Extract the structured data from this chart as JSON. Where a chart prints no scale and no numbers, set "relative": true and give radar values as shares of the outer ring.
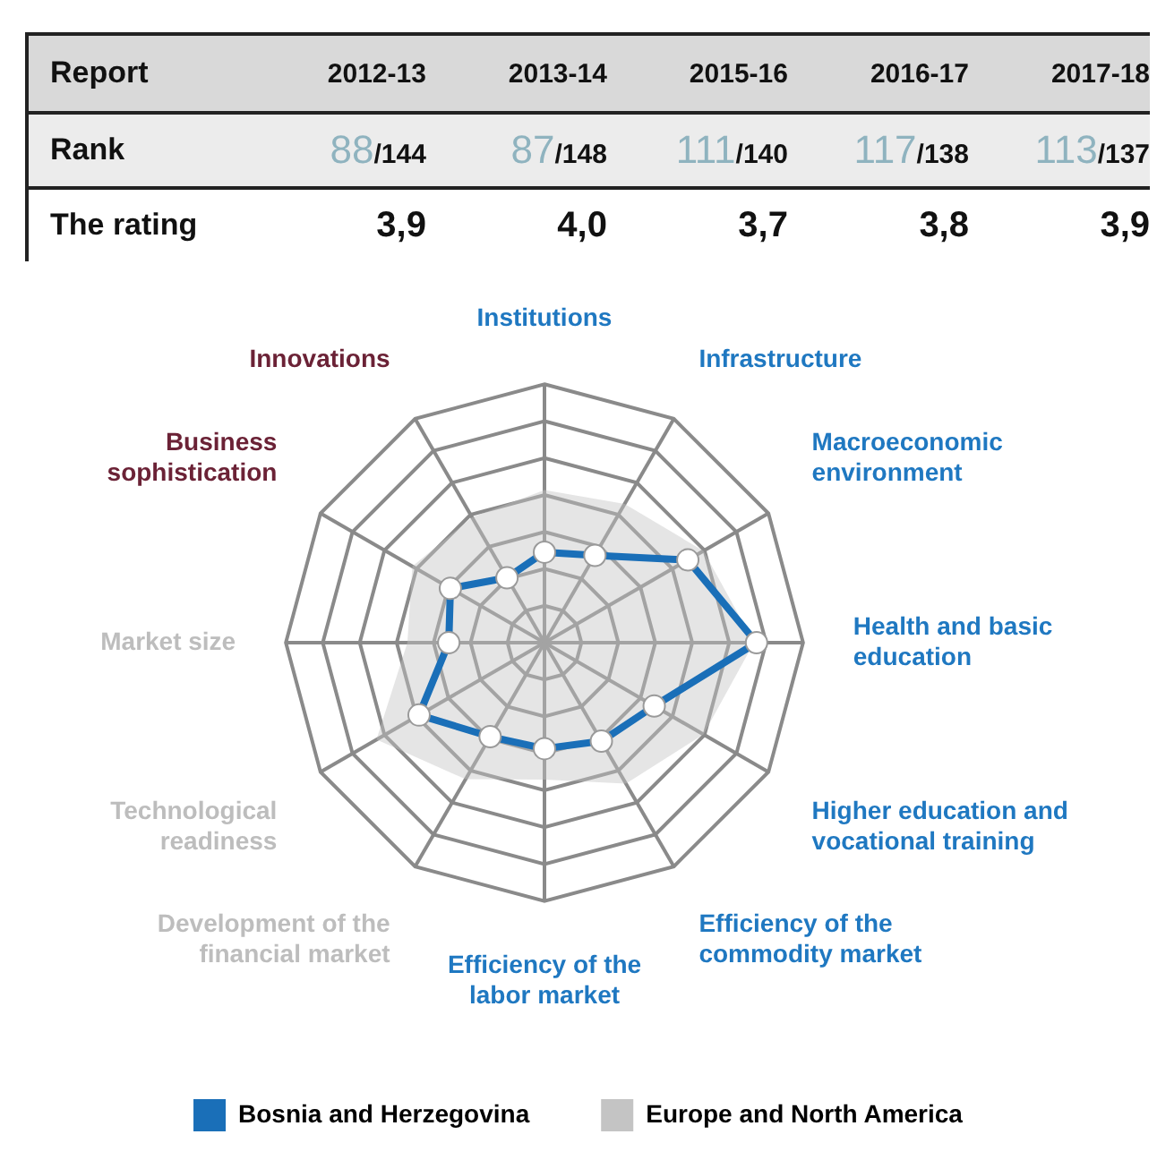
{
  "chart_data": [
    {
      "type": "other",
      "annotations": [
        "Report",
        "2012-13",
        "2013-14",
        "2015-16",
        "2016-17",
        "2017-18",
        "Rank",
        "88/144",
        "87/148",
        "111/140",
        "117/138",
        "113/137",
        "The rating",
        "3,9",
        "4,0",
        "3,7",
        "3,8",
        "3,9"
      ]
    },
    {
      "type": "radar",
      "relative": true,
      "grid": true,
      "legend": "bottom",
      "categories": [
        "Institutions",
        "Infrastructure",
        "Macroeconomic environment",
        "Health and basic education",
        "Higher education and vocational training",
        "Efficiency of the commodity market",
        "Efficiency of the labor market",
        "Development of the financial market",
        "Technological readiness",
        "Market size",
        "Business sophistication",
        "Innovations"
      ],
      "colors": [
        "#1f78c1",
        "#1f78c1",
        "#1f78c1",
        "#1f78c1",
        "#1f78c1",
        "#1f78c1",
        "#1f78c1",
        "#bdbdbd",
        "#bdbdbd",
        "#bdbdbd",
        "#6b2236",
        "#6b2236"
      ],
      "series": [
        {
          "name": "Europe and North America",
          "color": "#c4c4c4",
          "marker": "none",
          "values": [
            0.59,
            0.62,
            0.71,
            0.81,
            0.71,
            0.63,
            0.53,
            0.61,
            0.75,
            0.53,
            0.59,
            0.56
          ]
        },
        {
          "name": "Bosnia and Herzegovina",
          "color": "#1a6fb8",
          "marker": "circle",
          "values": [
            0.35,
            0.39,
            0.64,
            0.82,
            0.49,
            0.44,
            0.41,
            0.42,
            0.56,
            0.37,
            0.42,
            0.29
          ]
        }
      ]
    }
  ]
}
